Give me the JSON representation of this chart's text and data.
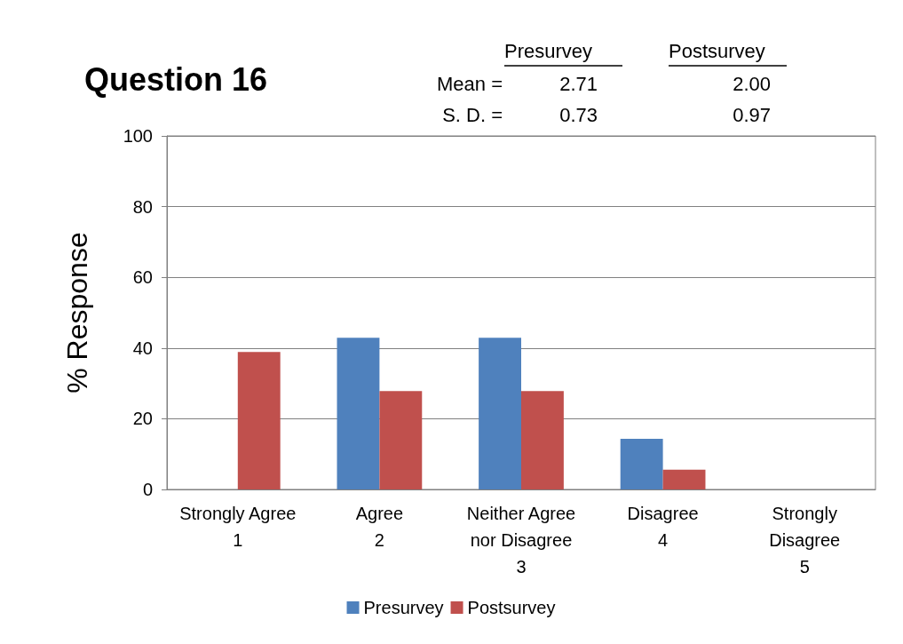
{
  "chart_data": {
    "type": "bar",
    "title": "Question 16",
    "ylabel": "% Response",
    "categories": [
      "Strongly Agree\n1",
      "Agree\n2",
      "Neither Agree\nnor Disagree\n3",
      "Disagree\n4",
      "Strongly\nDisagree\n5"
    ],
    "series": [
      {
        "name": "Presurvey",
        "color": "#4f81bd",
        "values": [
          0,
          42.9,
          42.9,
          14.3,
          0
        ]
      },
      {
        "name": "Postsurvey",
        "color": "#c0504d",
        "values": [
          38.9,
          27.8,
          27.8,
          5.6,
          0
        ]
      }
    ],
    "ylim": [
      0,
      100
    ],
    "yticks": [
      0,
      20,
      40,
      60,
      80,
      100
    ],
    "grid": "y",
    "legend": "bottom",
    "annotations": [
      "Presurvey",
      "Postsurvey",
      "Mean =",
      "2.71",
      "2.00",
      "S. D. =",
      "0.73",
      "0.97"
    ]
  }
}
